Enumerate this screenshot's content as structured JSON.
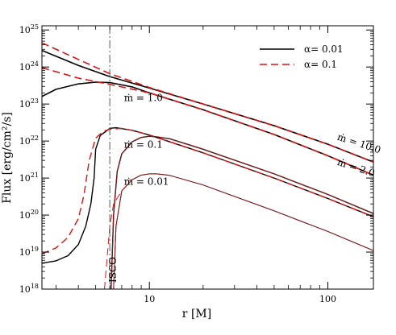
{
  "chart_data": {
    "type": "line",
    "xlabel": "r [M]",
    "ylabel": "Flux [erg/cm²/s]",
    "xscale": "log",
    "yscale": "log",
    "xlim": [
      2.5,
      180
    ],
    "ylim": [
      1e+18,
      1.3e+25
    ],
    "x_ticks": [
      {
        "value": 10,
        "label": "10"
      },
      {
        "value": 100,
        "label": "100"
      }
    ],
    "y_ticks": [
      {
        "value": 1e+18,
        "base": "10",
        "exp": "18"
      },
      {
        "value": 1e+19,
        "base": "10",
        "exp": "19"
      },
      {
        "value": 1e+20,
        "base": "10",
        "exp": "20"
      },
      {
        "value": 1e+21,
        "base": "10",
        "exp": "21"
      },
      {
        "value": 1e+22,
        "base": "10",
        "exp": "22"
      },
      {
        "value": 1e+23,
        "base": "10",
        "exp": "23"
      },
      {
        "value": 1e+24,
        "base": "10",
        "exp": "24"
      },
      {
        "value": 1e+25,
        "base": "10",
        "exp": "25"
      }
    ],
    "grid": false,
    "legend": {
      "placement": "top-right",
      "entries": [
        {
          "label": "α= 0.01",
          "color": "#000000",
          "dash": "solid"
        },
        {
          "label": "α= 0.1",
          "color": "#dd1111",
          "dash": "dashed"
        }
      ]
    },
    "isco": {
      "x": 6,
      "label": "ISCO"
    },
    "annotations": [
      {
        "text": "ṁ = 10.0",
        "x": 112,
        "y": 1.1e+22,
        "rotate": 18
      },
      {
        "text": "ṁ = 2.0",
        "x": 112,
        "y": 2.3e+21,
        "rotate": 18
      },
      {
        "text": "ṁ = 1.0",
        "x": 7.2,
        "y": 1.2e+23,
        "rotate": 0
      },
      {
        "text": "ṁ = 0.1",
        "x": 7.2,
        "y": 6.5e+21,
        "rotate": 0
      },
      {
        "text": "ṁ = 0.01",
        "x": 7.2,
        "y": 6.5e+20,
        "rotate": 0
      }
    ],
    "series": [
      {
        "alpha": "0.01",
        "color": "#000000",
        "dash": "solid",
        "width": 1.6,
        "points": [
          [
            2.5,
            2.8e+24
          ],
          [
            4,
            1.1e+24
          ],
          [
            6,
            5.5e+23
          ],
          [
            10,
            2.7e+23
          ],
          [
            20,
            1e+23
          ],
          [
            50,
            2.6e+22
          ],
          [
            100,
            8.2e+21
          ],
          [
            180,
            2.7e+21
          ]
        ]
      },
      {
        "alpha": "0.1",
        "color": "#dd1111",
        "dash": "dashed",
        "width": 1.6,
        "points": [
          [
            2.5,
            4.5e+24
          ],
          [
            4,
            1.6e+24
          ],
          [
            6,
            6.6e+23
          ],
          [
            10,
            2.8e+23
          ],
          [
            20,
            1e+23
          ],
          [
            50,
            2.6e+22
          ],
          [
            100,
            8.2e+21
          ],
          [
            180,
            2.7e+21
          ]
        ]
      },
      {
        "alpha": "0.01",
        "color": "#000000",
        "dash": "solid",
        "width": 1.6,
        "points": [
          [
            2.5,
            1.6e+23
          ],
          [
            3,
            2.5e+23
          ],
          [
            4,
            3.5e+23
          ],
          [
            5,
            3.9e+23
          ],
          [
            6,
            3.8e+23
          ],
          [
            8,
            2.9e+23
          ],
          [
            10,
            2e+23
          ],
          [
            20,
            7e+22
          ],
          [
            50,
            1.5e+22
          ],
          [
            100,
            4e+21
          ],
          [
            180,
            1.2e+21
          ]
        ]
      },
      {
        "alpha": "0.1",
        "color": "#dd1111",
        "dash": "dashed",
        "width": 1.6,
        "points": [
          [
            2.5,
            9.6e+23
          ],
          [
            4,
            5e+23
          ],
          [
            6,
            3.4e+23
          ],
          [
            10,
            2e+23
          ],
          [
            20,
            7e+22
          ],
          [
            50,
            1.5e+22
          ],
          [
            100,
            4e+21
          ],
          [
            180,
            1.2e+21
          ]
        ]
      },
      {
        "alpha": "0.01",
        "color": "#000000",
        "dash": "solid",
        "width": 1.4,
        "points": [
          [
            2.5,
            5e+18
          ],
          [
            3,
            5.8e+18
          ],
          [
            3.5,
            8e+18
          ],
          [
            4,
            1.6e+19
          ],
          [
            4.4,
            5e+19
          ],
          [
            4.7,
            2e+20
          ],
          [
            4.9,
            1e+21
          ],
          [
            5.0,
            6e+21
          ],
          [
            5.3,
            1.4e+22
          ],
          [
            6,
            2.2e+22
          ],
          [
            6.5,
            2.3e+22
          ],
          [
            8,
            1.95e+22
          ],
          [
            10,
            1.45e+22
          ],
          [
            20,
            4.8e+21
          ],
          [
            50,
            1e+21
          ],
          [
            100,
            2.8e+20
          ],
          [
            180,
            9e+19
          ]
        ]
      },
      {
        "alpha": "0.1",
        "color": "#dd1111",
        "dash": "dashed",
        "width": 1.4,
        "points": [
          [
            2.5,
            9e+18
          ],
          [
            3,
            1.3e+19
          ],
          [
            3.5,
            2.5e+19
          ],
          [
            4,
            8e+19
          ],
          [
            4.3,
            3.5e+20
          ],
          [
            4.6,
            3e+21
          ],
          [
            5,
            1.2e+22
          ],
          [
            5.5,
            1.8e+22
          ],
          [
            6,
            2.1e+22
          ],
          [
            7,
            2.2e+22
          ],
          [
            8,
            1.95e+22
          ],
          [
            10,
            1.45e+22
          ],
          [
            20,
            4.8e+21
          ],
          [
            50,
            1e+21
          ],
          [
            100,
            2.8e+20
          ],
          [
            180,
            9e+19
          ]
        ]
      },
      {
        "alpha": "0.01",
        "color": "#000000",
        "dash": "solid",
        "width": 1.0,
        "points": [
          [
            6.3,
            1e+18
          ],
          [
            6.5,
            5e+19
          ],
          [
            7,
            4.5e+20
          ],
          [
            8,
            9e+20
          ],
          [
            9,
            1.2e+21
          ],
          [
            10,
            1.3e+21
          ],
          [
            11,
            1.3e+21
          ],
          [
            13,
            1.18e+21
          ],
          [
            20,
            6.5e+20
          ],
          [
            50,
            1.3e+20
          ],
          [
            100,
            3.6e+19
          ],
          [
            180,
            1.1e+19
          ]
        ]
      },
      {
        "alpha": "0.01",
        "color": "#8a1a1a",
        "dash": "solid",
        "width": 1.0,
        "points": [
          [
            6.3,
            1e+18
          ],
          [
            6.5,
            5e+19
          ],
          [
            7,
            4.5e+20
          ],
          [
            8,
            9e+20
          ],
          [
            9,
            1.2e+21
          ],
          [
            10,
            1.3e+21
          ],
          [
            11,
            1.3e+21
          ],
          [
            13,
            1.18e+21
          ],
          [
            20,
            6.5e+20
          ],
          [
            50,
            1.3e+20
          ],
          [
            100,
            3.6e+19
          ],
          [
            180,
            1.1e+19
          ]
        ]
      },
      {
        "alpha": "0.1",
        "color": "#dd1111",
        "dash": "dashed",
        "width": 1.0,
        "points": [
          [
            5.6,
            1e+18
          ],
          [
            6.0,
            5e+19
          ],
          [
            6.3,
            2e+20
          ],
          [
            7,
            4.5e+20
          ],
          [
            8,
            9e+20
          ]
        ]
      },
      {
        "alpha": "0.01",
        "color": "#000000",
        "dash": "solid",
        "width": 1.4,
        "points": [
          [
            6.1,
            1e+18
          ],
          [
            6.3,
            1e+20
          ],
          [
            6.6,
            1.5e+21
          ],
          [
            7,
            4.5e+21
          ],
          [
            8,
            9.5e+21
          ],
          [
            9,
            1.25e+22
          ],
          [
            10,
            1.35e+22
          ],
          [
            11,
            1.3e+22
          ],
          [
            13,
            1.15e+22
          ],
          [
            20,
            6e+21
          ],
          [
            50,
            1.3e+21
          ],
          [
            100,
            3.6e+20
          ],
          [
            180,
            1.1e+20
          ]
        ]
      },
      {
        "alpha": "0.01",
        "color": "#8a1a1a",
        "dash": "solid",
        "width": 1.0,
        "points": [
          [
            6.1,
            1e+18
          ],
          [
            6.3,
            1e+20
          ],
          [
            6.6,
            1.5e+21
          ],
          [
            7,
            4.5e+21
          ],
          [
            8,
            9.5e+21
          ],
          [
            9,
            1.25e+22
          ],
          [
            10,
            1.35e+22
          ],
          [
            11,
            1.3e+22
          ],
          [
            13,
            1.15e+22
          ],
          [
            20,
            6e+21
          ],
          [
            50,
            1.3e+21
          ],
          [
            100,
            3.6e+20
          ],
          [
            180,
            1.1e+20
          ]
        ]
      }
    ]
  }
}
